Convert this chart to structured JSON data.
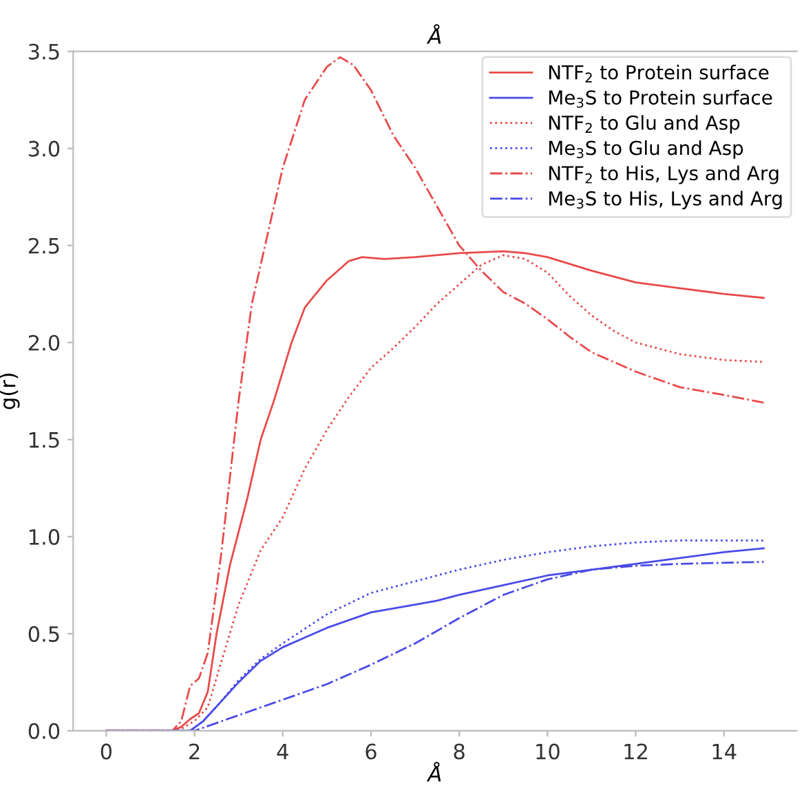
{
  "chart_data": {
    "type": "line",
    "title": "Å",
    "xlabel": "Å",
    "ylabel": "g(r)",
    "xlim": [
      -0.75,
      15.65
    ],
    "ylim": [
      0,
      3.5
    ],
    "xticks": [
      0,
      2,
      4,
      6,
      8,
      10,
      12,
      14
    ],
    "yticks": [
      {
        "value": 0,
        "label": "0.0"
      },
      {
        "value": 0.5,
        "label": "0.5"
      },
      {
        "value": 1,
        "label": "1.0"
      },
      {
        "value": 1.5,
        "label": "1.5"
      },
      {
        "value": 2,
        "label": "2.0"
      },
      {
        "value": 2.5,
        "label": "2.5"
      },
      {
        "value": 3,
        "label": "3.0"
      },
      {
        "value": 3.5,
        "label": "3.5"
      }
    ],
    "grid": false,
    "legend": "top right",
    "series": [
      {
        "name": "NTF$_{2}$ to Protein surface",
        "color": "#e84a4a",
        "line_style": "solid",
        "x": [
          0,
          1.5,
          1.7,
          1.9,
          2.1,
          2.3,
          2.5,
          2.8,
          3.2,
          3.5,
          3.8,
          4.2,
          4.5,
          5.0,
          5.5,
          5.8,
          6.3,
          7,
          8,
          9,
          9.5,
          10,
          11,
          12,
          13,
          14,
          14.9
        ],
        "values": [
          0,
          0,
          0.02,
          0.06,
          0.09,
          0.2,
          0.5,
          0.85,
          1.2,
          1.5,
          1.7,
          2.0,
          2.18,
          2.32,
          2.42,
          2.44,
          2.43,
          2.44,
          2.46,
          2.47,
          2.46,
          2.44,
          2.37,
          2.31,
          2.28,
          2.25,
          2.23
        ]
      },
      {
        "name": "Me$_{3}$S to Protein surface",
        "color": "#4a4ae8",
        "line_style": "solid",
        "x": [
          0,
          1.9,
          2.2,
          2.6,
          3,
          3.5,
          4,
          4.5,
          5,
          6,
          7,
          7.5,
          8,
          9,
          10,
          11,
          12,
          13,
          14,
          14.9
        ],
        "values": [
          0,
          0,
          0.05,
          0.15,
          0.25,
          0.36,
          0.43,
          0.48,
          0.53,
          0.61,
          0.65,
          0.67,
          0.7,
          0.75,
          0.8,
          0.83,
          0.86,
          0.89,
          0.92,
          0.94
        ]
      },
      {
        "name": "NTF$_{2}$ to Glu and Asp",
        "color": "#e84a4a",
        "line_style": "dotted",
        "x": [
          0,
          1.5,
          1.7,
          2.0,
          2.3,
          2.6,
          3.0,
          3.5,
          4.0,
          4.5,
          5.0,
          5.5,
          6.0,
          6.5,
          7,
          7.5,
          8,
          8.5,
          9.0,
          9.5,
          10,
          10.5,
          11,
          11.5,
          12,
          13,
          14,
          14.9
        ],
        "values": [
          0,
          0,
          0.01,
          0.05,
          0.12,
          0.35,
          0.65,
          0.93,
          1.1,
          1.35,
          1.55,
          1.72,
          1.87,
          1.97,
          2.08,
          2.2,
          2.3,
          2.4,
          2.45,
          2.43,
          2.36,
          2.24,
          2.14,
          2.06,
          2.0,
          1.94,
          1.91,
          1.9
        ]
      },
      {
        "name": "Me$_{3}$S to Glu and Asp",
        "color": "#4a4ae8",
        "line_style": "dotted",
        "x": [
          0,
          1.9,
          2.2,
          2.6,
          3,
          3.5,
          4,
          5,
          6,
          7,
          8,
          9,
          10,
          11,
          12,
          13,
          14.9
        ],
        "values": [
          0,
          0,
          0.05,
          0.15,
          0.26,
          0.37,
          0.45,
          0.6,
          0.71,
          0.77,
          0.83,
          0.88,
          0.92,
          0.95,
          0.97,
          0.98,
          0.98
        ]
      },
      {
        "name": "NTF$_{2}$ to His, Lys and Arg",
        "color": "#e84a4a",
        "line_style": "dashdot",
        "x": [
          0,
          1.5,
          1.7,
          1.9,
          2.1,
          2.3,
          2.6,
          3.0,
          3.3,
          3.6,
          4.0,
          4.5,
          5.0,
          5.3,
          5.6,
          6.0,
          6.5,
          7.0,
          7.5,
          8,
          8.5,
          9,
          9.5,
          10,
          10.5,
          11,
          12,
          13,
          14,
          14.9
        ],
        "values": [
          0,
          0,
          0.05,
          0.23,
          0.27,
          0.4,
          0.9,
          1.7,
          2.2,
          2.5,
          2.9,
          3.25,
          3.42,
          3.47,
          3.43,
          3.3,
          3.07,
          2.9,
          2.7,
          2.5,
          2.37,
          2.26,
          2.2,
          2.12,
          2.03,
          1.95,
          1.85,
          1.77,
          1.73,
          1.69
        ]
      },
      {
        "name": "Me$_{3}$S to His, Lys and Arg",
        "color": "#4a4ae8",
        "line_style": "dashdot",
        "x": [
          0,
          2,
          2.5,
          3,
          3.5,
          4,
          5,
          6,
          7,
          8,
          9,
          10,
          11,
          12,
          13,
          14.9
        ],
        "values": [
          0,
          0,
          0.04,
          0.08,
          0.12,
          0.16,
          0.24,
          0.34,
          0.45,
          0.58,
          0.7,
          0.78,
          0.83,
          0.85,
          0.86,
          0.87
        ]
      }
    ]
  }
}
